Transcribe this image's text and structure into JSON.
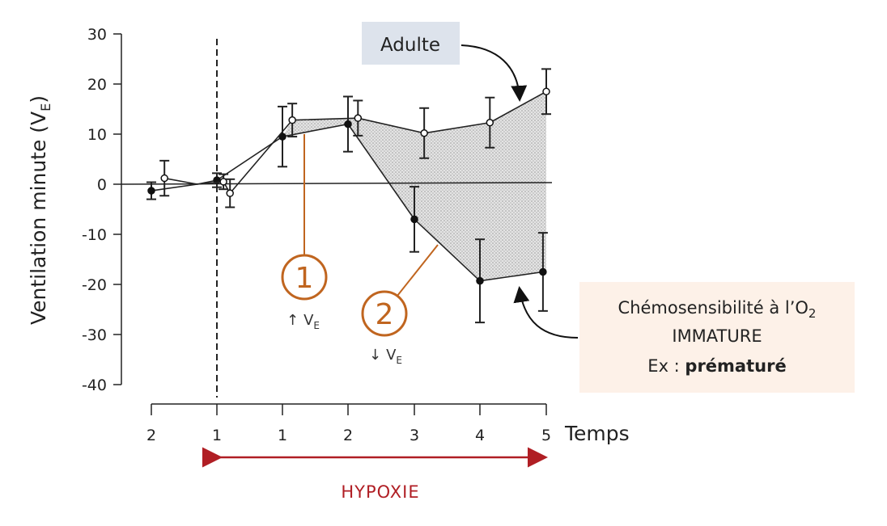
{
  "chart_data": {
    "type": "line",
    "ylabel_main": "Ventilation minute (V",
    "ylabel_sub": "E",
    "ylabel_close": ")",
    "ylim": [
      -40,
      30
    ],
    "yticks": [
      30,
      20,
      10,
      0,
      -10,
      -20,
      -30,
      -40
    ],
    "ytick_labels": [
      "30",
      "20",
      "10",
      "0",
      "-10",
      "-20",
      "-30",
      "-40"
    ],
    "x_ticks": [
      -2,
      -1,
      1,
      2,
      3,
      4,
      5
    ],
    "x_tick_labels": [
      "2",
      "1",
      "1",
      "2",
      "3",
      "4",
      "5"
    ],
    "xlabel": "Temps",
    "hypoxia_label": "HYPOXIE",
    "series": [
      {
        "key": "adulte",
        "points": [
          {
            "x": -1.8,
            "y": 1.2,
            "err": 3.5
          },
          {
            "x": -1.3,
            "y": 0,
            "err": 0
          },
          {
            "x": -0.8,
            "y": 0.5,
            "err": 1.5
          },
          {
            "x": -0.6,
            "y": -1.8,
            "err": 2.8
          },
          {
            "x": 1.15,
            "y": 12.8,
            "err": 3.3
          },
          {
            "x": 2.15,
            "y": 13.2,
            "err": 3.5
          },
          {
            "x": 3.15,
            "y": 10.2,
            "err": 5
          },
          {
            "x": 4.15,
            "y": 12.3,
            "err": 5
          },
          {
            "x": 5.1,
            "y": 18.5,
            "err": 4.5
          }
        ]
      },
      {
        "key": "immature",
        "points": [
          {
            "x": -2.0,
            "y": -1.3,
            "err": 1.7
          },
          {
            "x": -1.3,
            "y": 0,
            "err": 0
          },
          {
            "x": -1.0,
            "y": 0.8,
            "err": 1.4
          },
          {
            "x": 1.0,
            "y": 9.5,
            "err": 6
          },
          {
            "x": 2.0,
            "y": 12,
            "err": 5.5
          },
          {
            "x": 3.0,
            "y": -7,
            "err": 6.5
          },
          {
            "x": 4.0,
            "y": -19.3,
            "err": 8.3
          },
          {
            "x": 4.95,
            "y": -17.5,
            "err": 7.8
          }
        ]
      }
    ],
    "annotations": {
      "adulte_box": "Adulte",
      "immature_line1_main": "Chémosensibilité à l’O",
      "immature_line1_sub": "2",
      "immature_line2": "IMMATURE",
      "immature_line3_pre": "Ex : ",
      "immature_line3_bold": "prématuré",
      "callout1_num": "1",
      "callout1_arrow": "↑",
      "callout1_v": "V",
      "callout1_sub": "E",
      "callout2_num": "2",
      "callout2_arrow": "↓",
      "callout2_v": "V",
      "callout2_sub": "E"
    },
    "colors": {
      "callout": "#c0651f",
      "hypoxia": "#b01e24",
      "adulte_box_bg": "#dde3ec",
      "immature_box_bg": "#fdf1e8",
      "shade": "#cfcfcf"
    }
  }
}
